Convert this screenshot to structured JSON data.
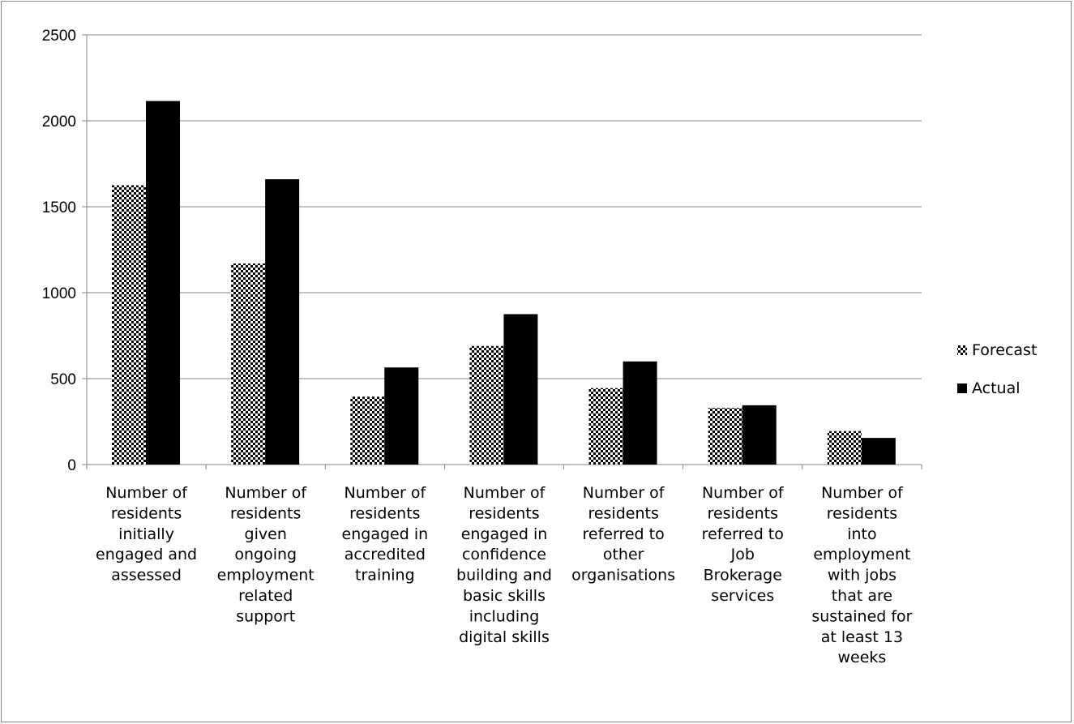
{
  "chart_data": {
    "type": "bar",
    "title": "",
    "xlabel": "",
    "ylabel": "",
    "ylim": [
      0,
      2500
    ],
    "yticks": [
      0,
      500,
      1000,
      1500,
      2000,
      2500
    ],
    "grid": true,
    "legend_position": "right",
    "categories": [
      [
        "Number of",
        "residents",
        "initially",
        "engaged and",
        "assessed"
      ],
      [
        "Number of",
        "residents",
        "given",
        "ongoing",
        "employment",
        "related",
        "support"
      ],
      [
        "Number of",
        "residents",
        "engaged in",
        "accredited",
        "training"
      ],
      [
        "Number of",
        "residents",
        "engaged in",
        "confidence",
        "building and",
        "basic skills",
        "including",
        "digital skills"
      ],
      [
        "Number of",
        "residents",
        "referred to",
        "other",
        "organisations"
      ],
      [
        "Number of",
        "residents",
        "referred to",
        "Job",
        "Brokerage",
        "services"
      ],
      [
        "Number of",
        "residents",
        "into",
        "employment",
        "with jobs",
        "that are",
        "sustained for",
        "at least 13",
        "weeks"
      ]
    ],
    "series": [
      {
        "name": "Forecast",
        "pattern": "checkerboard",
        "color": "#000000",
        "values": [
          1625,
          1170,
          395,
          690,
          445,
          330,
          195
        ]
      },
      {
        "name": "Actual",
        "pattern": "solid",
        "color": "#000000",
        "values": [
          2115,
          1660,
          565,
          875,
          600,
          345,
          155
        ]
      }
    ]
  }
}
